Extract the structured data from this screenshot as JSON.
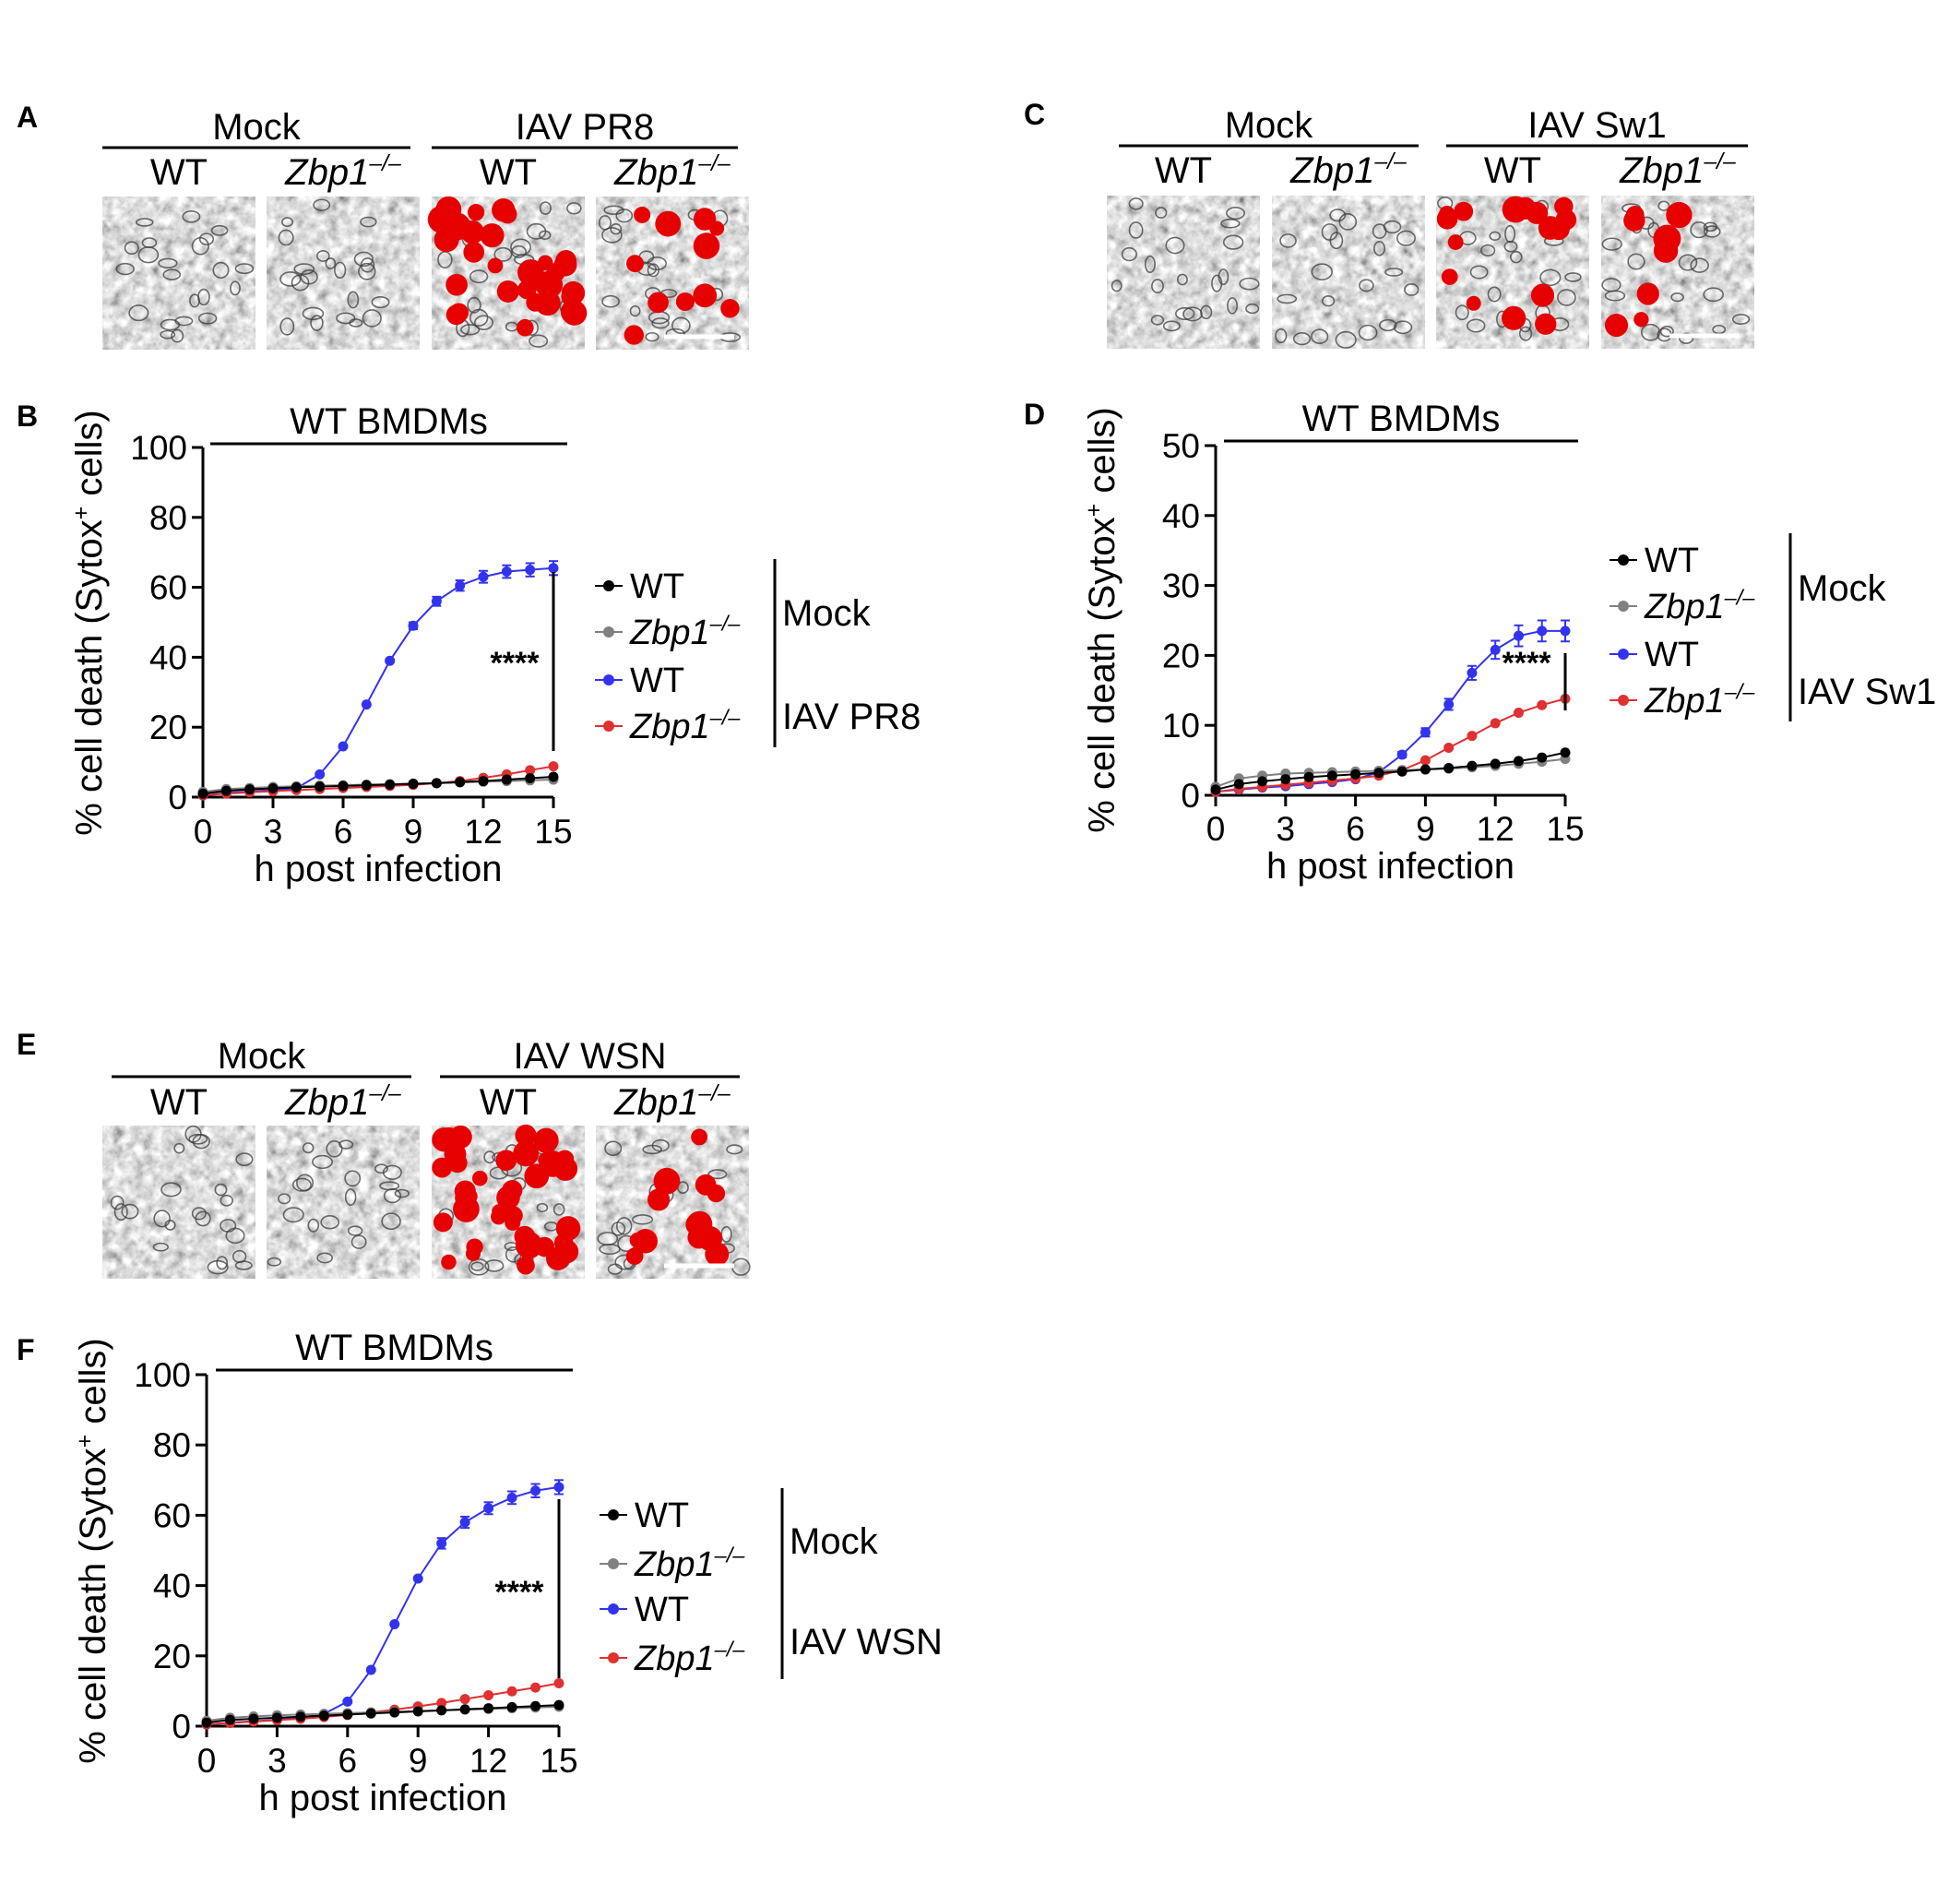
{
  "figure": {
    "image_panels": [
      {
        "letter": "A",
        "groups": [
          {
            "label": "Mock",
            "sub": [
              {
                "text": "WT",
                "italic": false
              },
              {
                "text": "Zbp1",
                "sup": "–/–",
                "italic": true
              }
            ]
          },
          {
            "label": "IAV PR8",
            "sub": [
              {
                "text": "WT",
                "italic": false
              },
              {
                "text": "Zbp1",
                "sup": "–/–",
                "italic": true
              }
            ]
          }
        ],
        "red_density": [
          0,
          0,
          30,
          11
        ],
        "scale_bar_on": [
          false,
          false,
          false,
          true
        ]
      },
      {
        "letter": "C",
        "groups": [
          {
            "label": "Mock",
            "sub": [
              {
                "text": "WT",
                "italic": false
              },
              {
                "text": "Zbp1",
                "sup": "–/–",
                "italic": true
              }
            ]
          },
          {
            "label": "IAV Sw1",
            "sub": [
              {
                "text": "WT",
                "italic": false
              },
              {
                "text": "Zbp1",
                "sup": "–/–",
                "italic": true
              }
            ]
          }
        ],
        "red_density": [
          0,
          0,
          16,
          8
        ],
        "scale_bar_on": [
          false,
          false,
          false,
          true
        ]
      },
      {
        "letter": "E",
        "groups": [
          {
            "label": "Mock",
            "sub": [
              {
                "text": "WT",
                "italic": false
              },
              {
                "text": "Zbp1",
                "sup": "–/–",
                "italic": true
              }
            ]
          },
          {
            "label": "IAV WSN",
            "sub": [
              {
                "text": "WT",
                "italic": false
              },
              {
                "text": "Zbp1",
                "sup": "–/–",
                "italic": true
              }
            ]
          }
        ],
        "red_density": [
          0,
          0,
          40,
          13
        ],
        "scale_bar_on": [
          false,
          false,
          false,
          true
        ]
      }
    ]
  },
  "chart_data": [
    {
      "panel": "B",
      "type": "line",
      "title": "WT BMDMs",
      "xlabel": "h post infection",
      "ylabel": "% cell death (Sytox⁺ cells)",
      "ylabel_main": "% cell death (Sytox",
      "ylabel_sup": "+",
      "ylabel_end": " cells)",
      "xlim": [
        0,
        15
      ],
      "ylim": [
        0,
        100
      ],
      "xticks": [
        0,
        3,
        6,
        9,
        12,
        15
      ],
      "yticks": [
        0,
        20,
        40,
        60,
        80,
        100
      ],
      "x": [
        0,
        1,
        2,
        3,
        4,
        5,
        6,
        7,
        8,
        9,
        10,
        11,
        12,
        13,
        14,
        15
      ],
      "significance": "****",
      "legend_placement": "right",
      "legend_groups": [
        "Mock",
        "IAV PR8"
      ],
      "series": [
        {
          "name": "WT",
          "italic": false,
          "sup": "",
          "group": "Mock",
          "color": "#000000",
          "values": [
            1,
            1.8,
            2.2,
            2.5,
            2.8,
            3,
            3.2,
            3.4,
            3.6,
            3.8,
            4,
            4.3,
            4.6,
            5,
            5.4,
            5.8
          ]
        },
        {
          "name": "Zbp1",
          "italic": true,
          "sup": "–/–",
          "group": "Mock",
          "color": "#808080",
          "values": [
            1.5,
            2.3,
            2.6,
            2.9,
            3.1,
            3.3,
            3.4,
            3.6,
            3.7,
            3.9,
            4,
            4.2,
            4.4,
            4.6,
            4.8,
            5
          ]
        },
        {
          "name": "WT",
          "italic": false,
          "sup": "",
          "group": "IAV PR8",
          "color": "#3333ee",
          "values": [
            0.5,
            1.2,
            1.6,
            2,
            2.5,
            6.5,
            14.5,
            26.5,
            39,
            49,
            56,
            60.5,
            63,
            64.5,
            65,
            65.5
          ],
          "err": [
            0,
            0,
            0,
            0,
            0,
            0,
            0,
            0,
            0,
            1,
            1.3,
            1.5,
            1.7,
            1.8,
            1.9,
            2
          ]
        },
        {
          "name": "Zbp1",
          "italic": true,
          "sup": "–/–",
          "group": "IAV PR8",
          "color": "#e03030",
          "values": [
            0.5,
            1,
            1.4,
            1.7,
            2,
            2.3,
            2.6,
            2.9,
            3.2,
            3.5,
            4,
            4.6,
            5.5,
            6.5,
            7.7,
            8.8
          ]
        }
      ]
    },
    {
      "panel": "D",
      "type": "line",
      "title": "WT BMDMs",
      "xlabel": "h post infection",
      "ylabel": "% cell death (Sytox⁺ cells)",
      "ylabel_main": "% cell death (Sytox",
      "ylabel_sup": "+",
      "ylabel_end": " cells)",
      "xlim": [
        0,
        15
      ],
      "ylim": [
        0,
        50
      ],
      "xticks": [
        0,
        3,
        6,
        9,
        12,
        15
      ],
      "yticks": [
        0,
        10,
        20,
        30,
        40,
        50
      ],
      "x": [
        0,
        1,
        2,
        3,
        4,
        5,
        6,
        7,
        8,
        9,
        10,
        11,
        12,
        13,
        14,
        15
      ],
      "significance": "****",
      "legend_placement": "right",
      "legend_groups": [
        "Mock",
        "IAV Sw1"
      ],
      "series": [
        {
          "name": "WT",
          "italic": false,
          "sup": "",
          "group": "Mock",
          "color": "#000000",
          "values": [
            0.8,
            1.6,
            2,
            2.3,
            2.6,
            2.8,
            3,
            3.2,
            3.4,
            3.7,
            3.9,
            4.2,
            4.5,
            4.9,
            5.4,
            6.1
          ]
        },
        {
          "name": "Zbp1",
          "italic": true,
          "sup": "–/–",
          "group": "Mock",
          "color": "#808080",
          "values": [
            1.2,
            2.4,
            2.8,
            3.1,
            3.2,
            3.3,
            3.4,
            3.5,
            3.6,
            3.7,
            3.8,
            4,
            4.2,
            4.5,
            4.8,
            5.2
          ]
        },
        {
          "name": "WT",
          "italic": false,
          "sup": "",
          "group": "IAV Sw1",
          "color": "#3333ee",
          "values": [
            0.5,
            0.8,
            1.1,
            1.3,
            1.6,
            1.9,
            2.3,
            3.3,
            5.8,
            9,
            13,
            17.5,
            20.8,
            22.8,
            23.5,
            23.5
          ],
          "err": [
            0,
            0,
            0,
            0,
            0,
            0,
            0,
            0,
            0.4,
            0.6,
            0.8,
            1,
            1.3,
            1.5,
            1.5,
            1.5
          ]
        },
        {
          "name": "Zbp1",
          "italic": true,
          "sup": "–/–",
          "group": "IAV Sw1",
          "color": "#e03030",
          "values": [
            0.5,
            0.9,
            1.2,
            1.5,
            1.8,
            2.1,
            2.4,
            2.8,
            3.6,
            5,
            6.8,
            8.5,
            10.3,
            11.8,
            12.9,
            13.8
          ]
        }
      ]
    },
    {
      "panel": "F",
      "type": "line",
      "title": "WT BMDMs",
      "xlabel": "h post infection",
      "ylabel": "% cell death (Sytox⁺ cells)",
      "ylabel_main": "% cell death (Sytox",
      "ylabel_sup": "+",
      "ylabel_end": " cells)",
      "xlim": [
        0,
        15
      ],
      "ylim": [
        0,
        100
      ],
      "xticks": [
        0,
        3,
        6,
        9,
        12,
        15
      ],
      "yticks": [
        0,
        20,
        40,
        60,
        80,
        100
      ],
      "x": [
        0,
        1,
        2,
        3,
        4,
        5,
        6,
        7,
        8,
        9,
        10,
        11,
        12,
        13,
        14,
        15
      ],
      "significance": "****",
      "legend_placement": "right",
      "legend_groups": [
        "Mock",
        "IAV WSN"
      ],
      "series": [
        {
          "name": "WT",
          "italic": false,
          "sup": "",
          "group": "Mock",
          "color": "#000000",
          "values": [
            1,
            1.8,
            2.1,
            2.4,
            2.7,
            3,
            3.3,
            3.6,
            3.9,
            4.2,
            4.5,
            4.8,
            5.1,
            5.4,
            5.7,
            6
          ]
        },
        {
          "name": "Zbp1",
          "italic": true,
          "sup": "–/–",
          "group": "Mock",
          "color": "#808080",
          "values": [
            1.5,
            2.4,
            2.8,
            3.1,
            3.3,
            3.5,
            3.7,
            3.9,
            4.1,
            4.3,
            4.5,
            4.7,
            4.9,
            5.1,
            5.3,
            5.5
          ]
        },
        {
          "name": "WT",
          "italic": false,
          "sup": "",
          "group": "IAV WSN",
          "color": "#3333ee",
          "values": [
            0.5,
            1,
            1.4,
            1.8,
            2.4,
            3.5,
            7,
            16,
            29,
            42,
            52,
            58,
            62,
            65,
            67,
            68
          ],
          "err": [
            0,
            0,
            0,
            0,
            0,
            0,
            0,
            0,
            0,
            0,
            1.5,
            1.6,
            1.7,
            1.8,
            1.9,
            2
          ]
        },
        {
          "name": "Zbp1",
          "italic": true,
          "sup": "–/–",
          "group": "IAV WSN",
          "color": "#e03030",
          "values": [
            0.5,
            0.9,
            1.3,
            1.7,
            2.1,
            2.6,
            3.2,
            3.9,
            4.7,
            5.6,
            6.6,
            7.7,
            8.8,
            9.9,
            11,
            12.2
          ]
        }
      ]
    }
  ]
}
